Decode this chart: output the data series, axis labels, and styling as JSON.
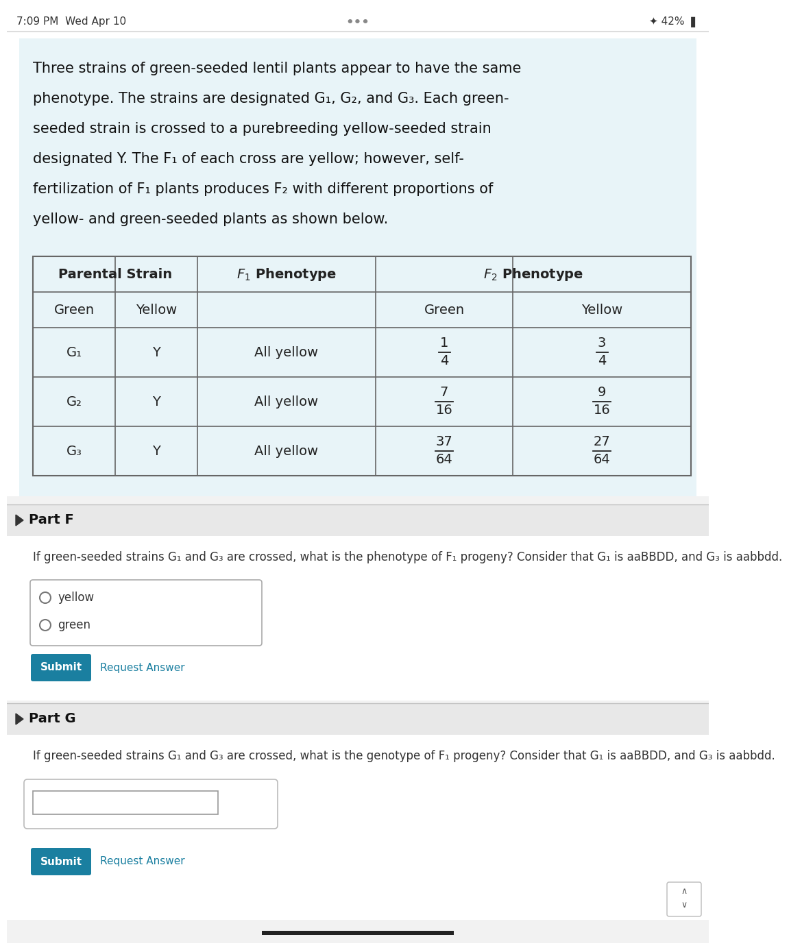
{
  "bg_color": "#ffffff",
  "status_bar": {
    "left": "7:09 PM  Wed Apr 10",
    "center": "•••",
    "right": "★ 42%",
    "font_size": 11,
    "color": "#333333"
  },
  "intro_box_color": "#e8f4f8",
  "intro_lines": [
    "Three strains of green-seeded lentil plants appear to have the same",
    "phenotype. The strains are designated G₁, G₂, and G₃. Each green-",
    "seeded strain is crossed to a purebreeding yellow-seeded strain",
    "designated Y. The F₁ of each cross are yellow; however, self-",
    "fertilization of F₁ plants produces F₂ with different proportions of",
    "yellow- and green-seeded plants as shown below."
  ],
  "table": {
    "border_color": "#666666",
    "text_color": "#222222",
    "bg_color": "#e8f4f8",
    "frac_green": [
      [
        "1",
        "4"
      ],
      [
        "7",
        "16"
      ],
      [
        "37",
        "64"
      ]
    ],
    "frac_yellow": [
      [
        "3",
        "4"
      ],
      [
        "9",
        "16"
      ],
      [
        "27",
        "64"
      ]
    ],
    "g_labels": [
      "G₁",
      "G₂",
      "G₃"
    ]
  },
  "part_f": {
    "title": "Part F",
    "question": "If green-seeded strains G₁ and G₃ are crossed, what is the phenotype of F₁ progeny? Consider that G₁ is aaBBDD, and G₃ is aabbdd.",
    "options": [
      "yellow",
      "green"
    ],
    "submit_color": "#1a7fa0",
    "submit_text": "Submit",
    "answer_link": "Request Answer"
  },
  "part_g": {
    "title": "Part G",
    "question": "If green-seeded strains G₁ and G₃ are crossed, what is the genotype of F₁ progeny? Consider that G₁ is aaBBDD, and G₃ is aabbdd.",
    "submit_color": "#1a7fa0",
    "submit_text": "Submit",
    "answer_link": "Request Answer"
  },
  "separator_color": "#cccccc",
  "arrow_color": "#444444",
  "font_size_status": 11,
  "font_size_intro": 15,
  "font_size_table_header": 14,
  "font_size_table_cell": 14,
  "font_size_part_title": 13,
  "font_size_question": 12,
  "font_size_option": 12
}
